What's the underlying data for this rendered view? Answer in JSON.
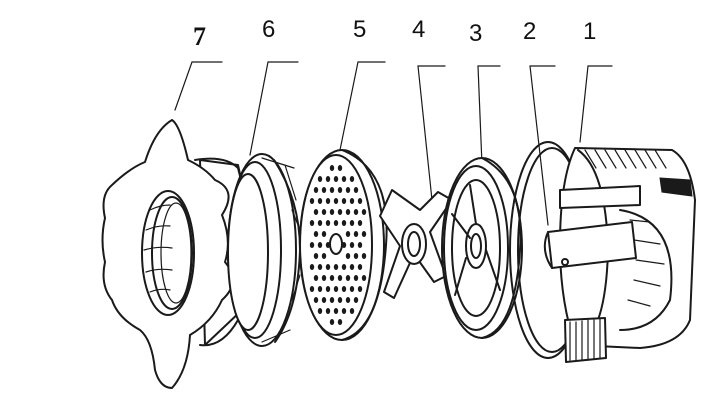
{
  "labels": {
    "n7": "7",
    "n6": "6",
    "n5": "5",
    "n4": "4",
    "n3": "3",
    "n2": "2",
    "n1": "1"
  }
}
